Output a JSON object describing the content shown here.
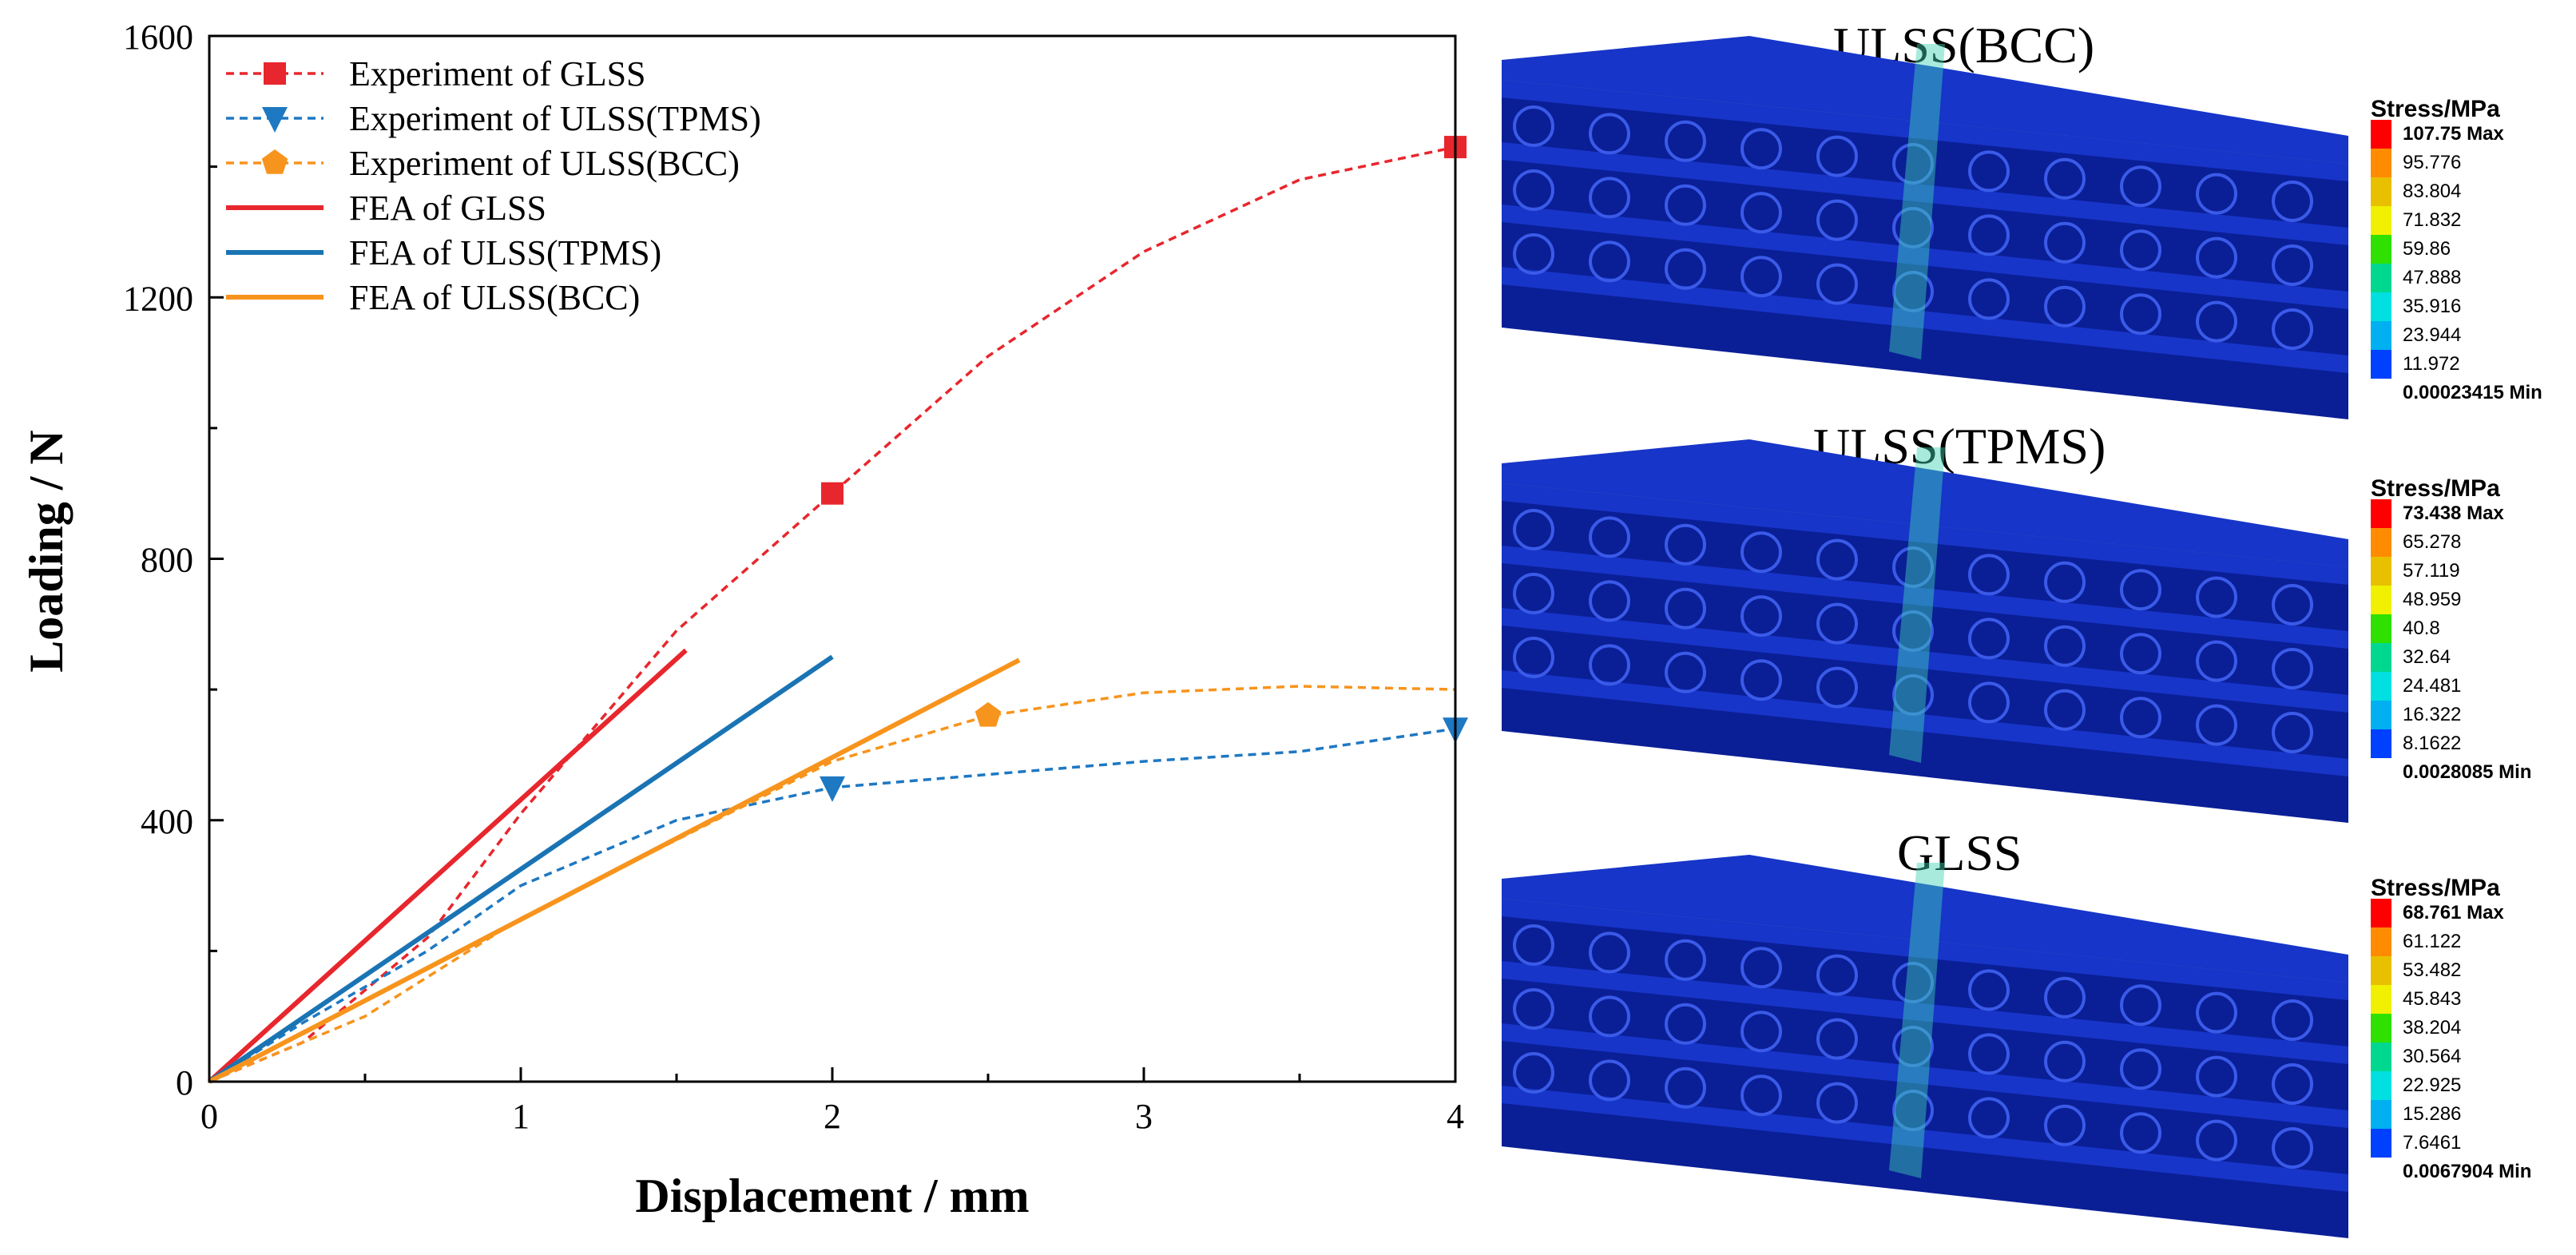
{
  "chart_data": {
    "type": "line",
    "xlabel": "Displacement / mm",
    "ylabel": "Loading / N",
    "xlim": [
      0,
      4
    ],
    "ylim": [
      0,
      1600
    ],
    "x_ticks": [
      "0",
      "1",
      "2",
      "3",
      "4"
    ],
    "y_ticks": [
      "0",
      "400",
      "800",
      "1200",
      "1600"
    ],
    "legend_position": "top-left",
    "series": [
      {
        "name": "Experiment of GLSS",
        "style": "dashed",
        "marker": "square",
        "color": "#e8262d",
        "x": [
          0,
          0.3,
          0.7,
          1.0,
          1.5,
          2.0,
          2.5,
          3.0,
          3.5,
          4.0
        ],
        "y": [
          0,
          60,
          220,
          410,
          690,
          900,
          1110,
          1270,
          1380,
          1430
        ],
        "marker_x": [
          2.0,
          4.0
        ],
        "marker_y": [
          900,
          1430
        ]
      },
      {
        "name": "Experiment of ULSS(TPMS)",
        "style": "dashed",
        "marker": "triangle-down",
        "color": "#1e78c2",
        "x": [
          0,
          0.3,
          0.7,
          1.0,
          1.5,
          2.0,
          2.5,
          3.0,
          3.5,
          4.0
        ],
        "y": [
          0,
          90,
          200,
          300,
          400,
          450,
          470,
          490,
          505,
          540
        ],
        "marker_x": [
          2.0,
          4.0
        ],
        "marker_y": [
          450,
          540
        ]
      },
      {
        "name": "Experiment of ULSS(BCC)",
        "style": "dashed",
        "marker": "pentagon",
        "color": "#f7941d",
        "x": [
          0,
          0.5,
          1.0,
          1.5,
          2.0,
          2.5,
          3.0,
          3.5,
          4.0
        ],
        "y": [
          0,
          100,
          250,
          370,
          490,
          560,
          595,
          605,
          600
        ],
        "marker_x": [
          2.5
        ],
        "marker_y": [
          560
        ]
      },
      {
        "name": "FEA of GLSS",
        "style": "solid",
        "marker": "none",
        "color": "#e8262d",
        "x": [
          0,
          1.53
        ],
        "y": [
          0,
          660
        ]
      },
      {
        "name": "FEA of ULSS(TPMS)",
        "style": "solid",
        "marker": "none",
        "color": "#1a74b4",
        "x": [
          0,
          2.0
        ],
        "y": [
          0,
          650
        ]
      },
      {
        "name": "FEA of ULSS(BCC)",
        "style": "solid",
        "marker": "none",
        "color": "#f7941d",
        "x": [
          0,
          2.6
        ],
        "y": [
          0,
          645
        ]
      }
    ]
  },
  "simulations": [
    {
      "title": "ULSS(BCC)",
      "legend_title": "Stress/MPa",
      "labels": [
        "107.75 Max",
        "95.776",
        "83.804",
        "71.832",
        "59.86",
        "47.888",
        "35.916",
        "23.944",
        "11.972",
        "0.00023415 Min"
      ]
    },
    {
      "title": "ULSS(TPMS)",
      "legend_title": "Stress/MPa",
      "labels": [
        "73.438 Max",
        "65.278",
        "57.119",
        "48.959",
        "40.8",
        "32.64",
        "24.481",
        "16.322",
        "8.1622",
        "0.0028085 Min"
      ]
    },
    {
      "title": "GLSS",
      "legend_title": "Stress/MPa",
      "labels": [
        "68.761 Max",
        "61.122",
        "53.482",
        "45.843",
        "38.204",
        "30.564",
        "22.925",
        "15.286",
        "7.6461",
        "0.0067904 Min"
      ]
    }
  ],
  "colors": {
    "legend_scale": [
      "#ff0000",
      "#ff8c00",
      "#e8c000",
      "#f0f000",
      "#30e000",
      "#00d890",
      "#00e0e0",
      "#00b0f0",
      "#0040ff"
    ],
    "beam_fill": "#1735c8",
    "beam_dark": "#0a1e96",
    "highlight": "#3fd3b4"
  }
}
